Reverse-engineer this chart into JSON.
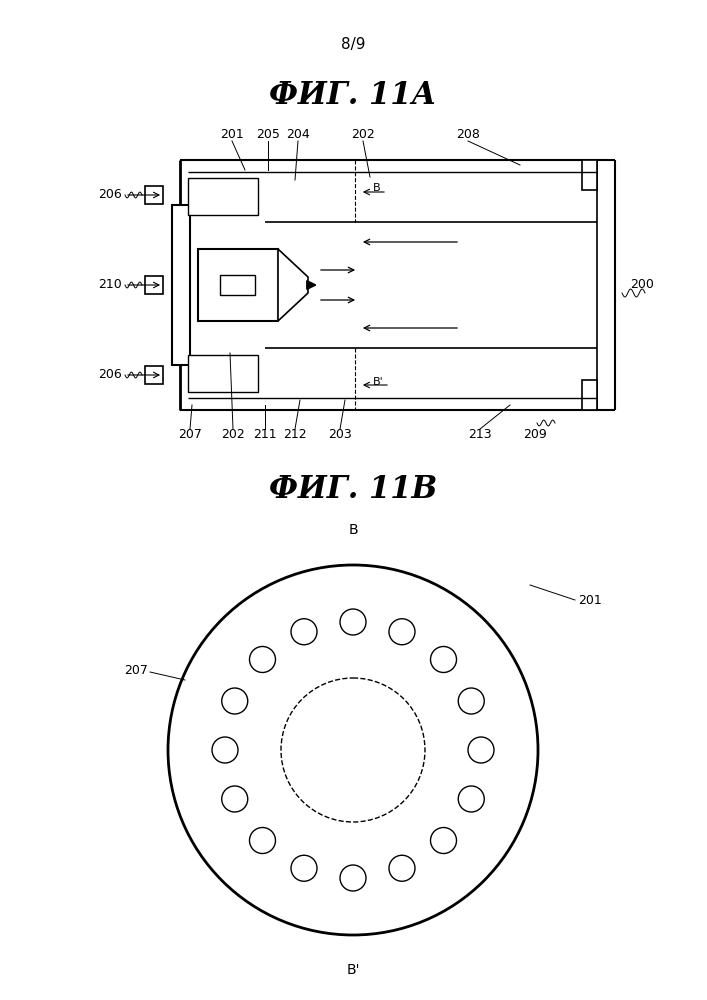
{
  "bg_color": "#ffffff",
  "line_color": "#000000",
  "page_label": "8/9",
  "fig11a_title": "ФИГ. 11А",
  "fig11b_title": "ФИГ. 11В"
}
